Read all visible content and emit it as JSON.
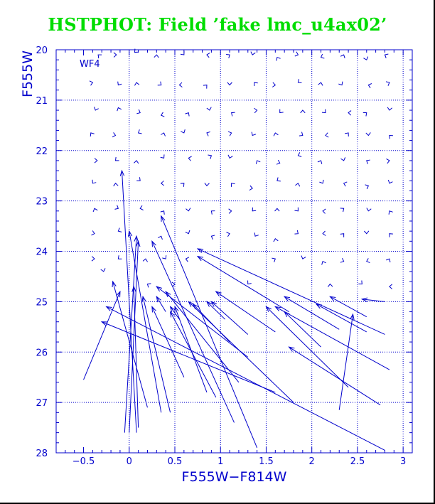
{
  "colors": {
    "title": "#00dd00",
    "plot": "#0000cc",
    "grid": "#0000cc",
    "background": "#ffffff",
    "border": "#000000"
  },
  "chart_data": {
    "type": "scatter",
    "title": "HSTPHOT: Field ’fake lmc_u4ax02’",
    "panel_label": "WF4",
    "xlabel": "F555W−F814W",
    "ylabel": "F555W",
    "xlim": [
      -0.8,
      3.1
    ],
    "ylim": [
      20,
      28
    ],
    "y_inverted": true,
    "grid": true,
    "x_gridlines": [
      0,
      0.5,
      1,
      1.5,
      2,
      2.5,
      3
    ],
    "y_gridlines": [
      21,
      22,
      23,
      24,
      25,
      26,
      27
    ],
    "x_ticks": [
      {
        "value": -0.5,
        "label": "−0.5"
      },
      {
        "value": 0,
        "label": "0"
      },
      {
        "value": 0.5,
        "label": "0.5"
      },
      {
        "value": 1,
        "label": "1"
      },
      {
        "value": 1.5,
        "label": "1.5"
      },
      {
        "value": 2,
        "label": "2"
      },
      {
        "value": 2.5,
        "label": "2.5"
      },
      {
        "value": 3,
        "label": "3"
      }
    ],
    "y_ticks": [
      {
        "value": 20,
        "label": "20"
      },
      {
        "value": 21,
        "label": "21"
      },
      {
        "value": 22,
        "label": "22"
      },
      {
        "value": 23,
        "label": "23"
      },
      {
        "value": 24,
        "label": "24"
      },
      {
        "value": 25,
        "label": "25"
      },
      {
        "value": 26,
        "label": "26"
      },
      {
        "value": 27,
        "label": "27"
      },
      {
        "value": 28,
        "label": "28"
      }
    ],
    "vectors": [
      {
        "from": [
          0.08,
          27.6
        ],
        "to": [
          -0.08,
          22.4
        ]
      },
      {
        "from": [
          -0.05,
          27.6
        ],
        "to": [
          0.08,
          23.7
        ]
      },
      {
        "from": [
          0.1,
          27.5
        ],
        "to": [
          0.05,
          24.7
        ]
      },
      {
        "from": [
          0.0,
          27.6
        ],
        "to": [
          0.1,
          23.8
        ]
      },
      {
        "from": [
          0.35,
          27.2
        ],
        "to": [
          0.0,
          23.6
        ]
      },
      {
        "from": [
          -0.5,
          26.55
        ],
        "to": [
          -0.1,
          24.8
        ]
      },
      {
        "from": [
          0.2,
          27.1
        ],
        "to": [
          -0.18,
          24.6
        ]
      },
      {
        "from": [
          0.45,
          27.2
        ],
        "to": [
          0.15,
          24.9
        ]
      },
      {
        "from": [
          0.6,
          26.5
        ],
        "to": [
          0.25,
          25.1
        ]
      },
      {
        "from": [
          0.85,
          26.8
        ],
        "to": [
          0.5,
          25.1
        ]
      },
      {
        "from": [
          1.4,
          27.9
        ],
        "to": [
          0.35,
          23.3
        ]
      },
      {
        "from": [
          1.15,
          27.4
        ],
        "to": [
          0.25,
          23.8
        ]
      },
      {
        "from": [
          1.8,
          27.0
        ],
        "to": [
          0.65,
          25.0
        ]
      },
      {
        "from": [
          1.2,
          26.6
        ],
        "to": [
          0.4,
          24.8
        ]
      },
      {
        "from": [
          0.95,
          26.9
        ],
        "to": [
          0.45,
          25.2
        ]
      },
      {
        "from": [
          1.6,
          26.8
        ],
        "to": [
          -0.3,
          25.4
        ]
      },
      {
        "from": [
          2.8,
          27.95
        ],
        "to": [
          -0.25,
          25.1
        ]
      },
      {
        "from": [
          1.3,
          26.1
        ],
        "to": [
          0.3,
          24.7
        ]
      },
      {
        "from": [
          1.6,
          25.6
        ],
        "to": [
          0.95,
          24.8
        ]
      },
      {
        "from": [
          1.75,
          25.2
        ],
        "to": [
          0.75,
          24.1
        ]
      },
      {
        "from": [
          2.8,
          25.65
        ],
        "to": [
          0.75,
          23.95
        ]
      },
      {
        "from": [
          2.85,
          26.35
        ],
        "to": [
          1.6,
          25.1
        ]
      },
      {
        "from": [
          2.75,
          27.05
        ],
        "to": [
          1.75,
          25.9
        ]
      },
      {
        "from": [
          2.4,
          26.7
        ],
        "to": [
          1.5,
          25.1
        ]
      },
      {
        "from": [
          2.1,
          25.9
        ],
        "to": [
          1.7,
          25.2
        ]
      },
      {
        "from": [
          2.3,
          25.55
        ],
        "to": [
          1.7,
          24.9
        ]
      },
      {
        "from": [
          2.6,
          25.6
        ],
        "to": [
          2.05,
          25.05
        ]
      },
      {
        "from": [
          2.3,
          27.15
        ],
        "to": [
          2.45,
          25.25
        ]
      },
      {
        "from": [
          1.3,
          25.65
        ],
        "to": [
          0.9,
          25.0
        ]
      },
      {
        "from": [
          1.1,
          25.8
        ],
        "to": [
          0.7,
          25.05
        ]
      },
      {
        "from": [
          2.6,
          25.3
        ],
        "to": [
          2.2,
          24.9
        ]
      },
      {
        "from": [
          2.8,
          25.0
        ],
        "to": [
          2.55,
          24.95
        ]
      },
      {
        "from": [
          1.05,
          25.35
        ],
        "to": [
          0.85,
          25.0
        ]
      },
      {
        "from": [
          0.4,
          25.2
        ],
        "to": [
          0.3,
          24.9
        ]
      },
      {
        "from": [
          0.55,
          25.35
        ],
        "to": [
          0.45,
          25.1
        ]
      }
    ],
    "flags": [
      [
        -0.34,
        20.1
      ],
      [
        -0.14,
        20.1
      ],
      [
        0.06,
        20.05
      ],
      [
        0.3,
        20.1
      ],
      [
        0.6,
        20.1
      ],
      [
        0.85,
        20.1
      ],
      [
        1.1,
        20.1
      ],
      [
        1.35,
        20.1
      ],
      [
        1.62,
        20.15
      ],
      [
        1.85,
        20.1
      ],
      [
        2.1,
        20.15
      ],
      [
        2.35,
        20.1
      ],
      [
        2.6,
        20.2
      ],
      [
        2.8,
        20.1
      ],
      [
        -0.4,
        20.65
      ],
      [
        -0.12,
        20.7
      ],
      [
        0.08,
        20.65
      ],
      [
        0.35,
        20.7
      ],
      [
        0.55,
        20.7
      ],
      [
        0.85,
        20.7
      ],
      [
        1.1,
        20.7
      ],
      [
        1.37,
        20.65
      ],
      [
        1.6,
        20.7
      ],
      [
        1.85,
        20.65
      ],
      [
        2.1,
        20.65
      ],
      [
        2.33,
        20.7
      ],
      [
        2.62,
        20.7
      ],
      [
        2.85,
        20.65
      ],
      [
        -0.37,
        21.2
      ],
      [
        -0.12,
        21.15
      ],
      [
        0.12,
        21.25
      ],
      [
        0.35,
        21.3
      ],
      [
        0.65,
        21.25
      ],
      [
        0.88,
        21.2
      ],
      [
        1.12,
        21.25
      ],
      [
        1.4,
        21.2
      ],
      [
        1.65,
        21.25
      ],
      [
        1.9,
        21.2
      ],
      [
        2.15,
        21.25
      ],
      [
        2.4,
        21.25
      ],
      [
        2.6,
        21.25
      ],
      [
        2.85,
        21.2
      ],
      [
        -0.42,
        21.65
      ],
      [
        -0.15,
        21.7
      ],
      [
        0.1,
        21.65
      ],
      [
        0.38,
        21.65
      ],
      [
        0.6,
        21.65
      ],
      [
        0.85,
        21.65
      ],
      [
        1.12,
        21.65
      ],
      [
        1.35,
        21.7
      ],
      [
        1.6,
        21.65
      ],
      [
        1.9,
        21.7
      ],
      [
        2.15,
        21.7
      ],
      [
        2.4,
        21.65
      ],
      [
        2.62,
        21.7
      ],
      [
        2.85,
        21.7
      ],
      [
        -0.35,
        22.2
      ],
      [
        -0.15,
        22.2
      ],
      [
        0.08,
        22.2
      ],
      [
        0.38,
        22.15
      ],
      [
        0.65,
        22.15
      ],
      [
        0.9,
        22.1
      ],
      [
        1.1,
        22.15
      ],
      [
        1.4,
        22.2
      ],
      [
        1.65,
        22.25
      ],
      [
        1.85,
        22.1
      ],
      [
        2.1,
        22.2
      ],
      [
        2.35,
        22.2
      ],
      [
        2.6,
        22.2
      ],
      [
        2.85,
        22.2
      ],
      [
        -0.4,
        22.65
      ],
      [
        -0.15,
        22.65
      ],
      [
        0.12,
        22.6
      ],
      [
        0.35,
        22.65
      ],
      [
        0.6,
        22.65
      ],
      [
        0.85,
        22.7
      ],
      [
        1.12,
        22.65
      ],
      [
        1.35,
        22.75
      ],
      [
        1.62,
        22.6
      ],
      [
        1.85,
        22.65
      ],
      [
        2.12,
        22.65
      ],
      [
        2.35,
        22.65
      ],
      [
        2.62,
        22.7
      ],
      [
        2.85,
        22.65
      ],
      [
        -0.38,
        23.15
      ],
      [
        -0.12,
        23.15
      ],
      [
        0.12,
        23.15
      ],
      [
        0.38,
        23.2
      ],
      [
        0.65,
        23.2
      ],
      [
        0.9,
        23.2
      ],
      [
        1.12,
        23.2
      ],
      [
        1.35,
        23.2
      ],
      [
        1.62,
        23.15
      ],
      [
        1.85,
        23.2
      ],
      [
        2.12,
        23.2
      ],
      [
        2.35,
        23.15
      ],
      [
        2.62,
        23.2
      ],
      [
        2.85,
        23.2
      ],
      [
        -0.38,
        23.65
      ],
      [
        -0.12,
        23.6
      ],
      [
        0.35,
        23.7
      ],
      [
        0.65,
        23.65
      ],
      [
        0.9,
        23.7
      ],
      [
        1.1,
        23.65
      ],
      [
        1.38,
        23.7
      ],
      [
        1.6,
        23.75
      ],
      [
        1.85,
        23.65
      ],
      [
        2.12,
        23.65
      ],
      [
        2.35,
        23.65
      ],
      [
        2.6,
        23.65
      ],
      [
        2.85,
        23.65
      ],
      [
        -0.38,
        24.15
      ],
      [
        -0.12,
        24.15
      ],
      [
        0.18,
        24.15
      ],
      [
        0.4,
        24.15
      ],
      [
        0.62,
        24.15
      ],
      [
        1.6,
        24.15
      ],
      [
        1.9,
        24.15
      ],
      [
        2.12,
        24.2
      ],
      [
        2.35,
        24.2
      ],
      [
        2.6,
        24.2
      ],
      [
        2.85,
        24.15
      ],
      [
        -0.28,
        24.4
      ],
      [
        0.2,
        24.65
      ],
      [
        0.5,
        24.65
      ],
      [
        1.3,
        24.65
      ],
      [
        2.2,
        24.65
      ],
      [
        2.55,
        24.65
      ],
      [
        2.85,
        24.7
      ]
    ]
  }
}
